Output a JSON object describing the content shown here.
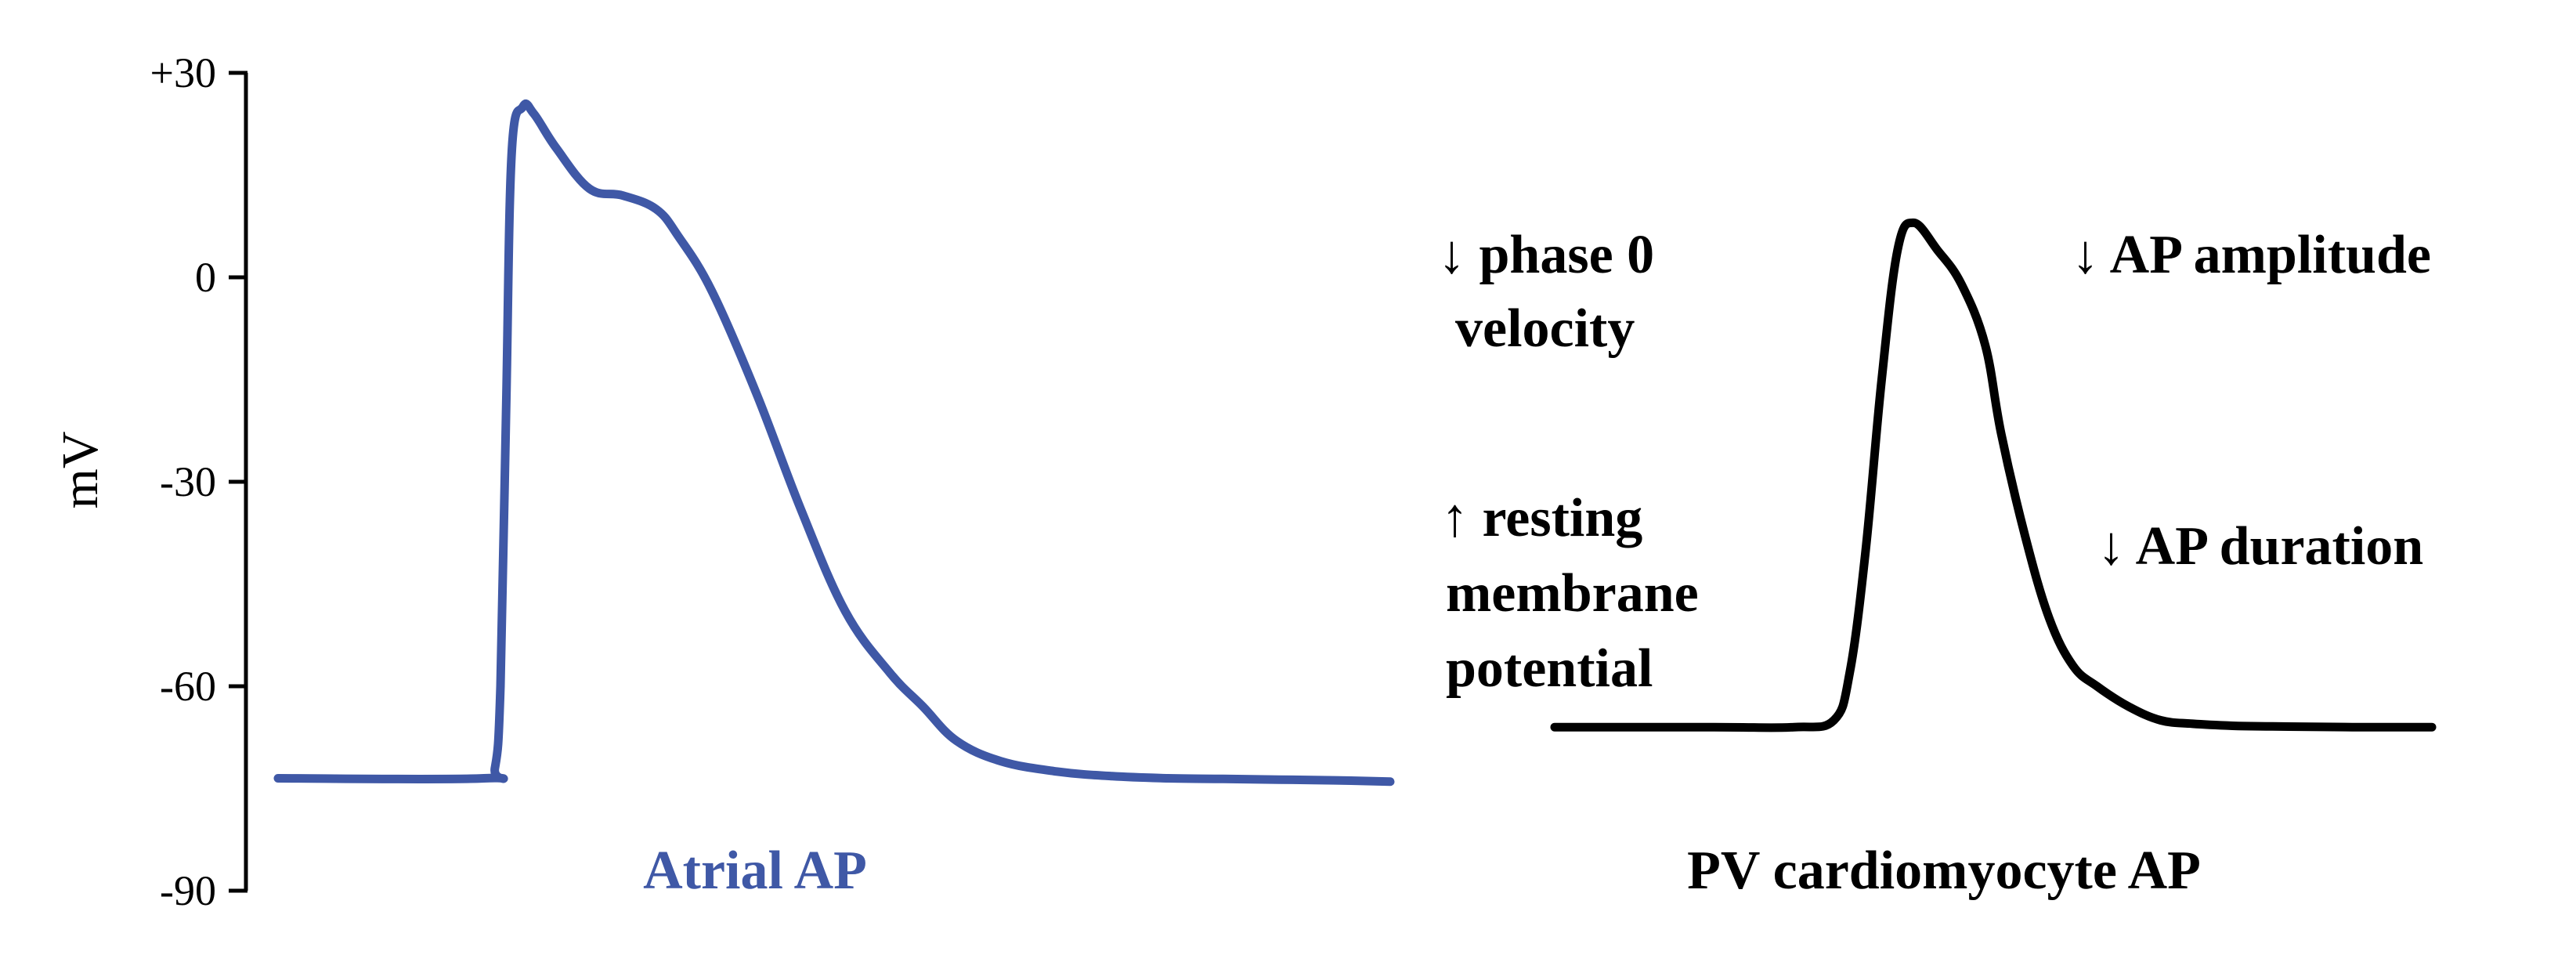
{
  "chart_data": {
    "type": "line",
    "ylabel": "mV",
    "ylim": [
      -90,
      30
    ],
    "y_ticks": [
      {
        "value": 30,
        "label": "+30"
      },
      {
        "value": 0,
        "label": "0"
      },
      {
        "value": -30,
        "label": "-30"
      },
      {
        "value": -60,
        "label": "-60"
      },
      {
        "value": -90,
        "label": "-90"
      }
    ],
    "series": [
      {
        "name": "Atrial AP",
        "color": "#3f58a6",
        "x": [
          0,
          37,
          39,
          40,
          41,
          42,
          44,
          46,
          50,
          56,
          62,
          68,
          72,
          78,
          86,
          94,
          102,
          110,
          116,
          122,
          130,
          140,
          150,
          160,
          170,
          180,
          190,
          200
        ],
        "values": [
          -73.5,
          -73.5,
          -72,
          -60,
          -20,
          18,
          25,
          24,
          19,
          13,
          12,
          10,
          6,
          -2,
          -17,
          -34,
          -49,
          -58,
          -63,
          -68,
          -71,
          -72.5,
          -73.2,
          -73.5,
          -73.6,
          -73.7,
          -73.8,
          -74
        ]
      },
      {
        "name": "PV cardiomyocyte AP",
        "color": "#000000",
        "x": [
          0,
          20,
          30,
          35,
          37,
          39,
          41,
          43,
          45,
          48,
          51,
          54,
          56,
          59,
          62,
          65,
          68,
          72,
          76,
          80,
          85,
          90,
          100,
          110
        ],
        "values": [
          -66,
          -66,
          -66,
          -65,
          -58,
          -40,
          -15,
          4,
          8,
          4,
          -1,
          -10,
          -23,
          -38,
          -50,
          -57,
          -60,
          -63,
          -65,
          -65.5,
          -65.8,
          -65.9,
          -66,
          -66
        ]
      }
    ],
    "annotations": [
      {
        "text": "↓ phase 0",
        "position": "left-upper"
      },
      {
        "text": "velocity",
        "position": "left-upper"
      },
      {
        "text": "↑ resting",
        "position": "left-lower"
      },
      {
        "text": "membrane",
        "position": "left-lower"
      },
      {
        "text": "potential",
        "position": "left-lower"
      },
      {
        "text": "↓ AP amplitude",
        "position": "right-upper"
      },
      {
        "text": "↓ AP duration",
        "position": "right-lower"
      }
    ]
  }
}
